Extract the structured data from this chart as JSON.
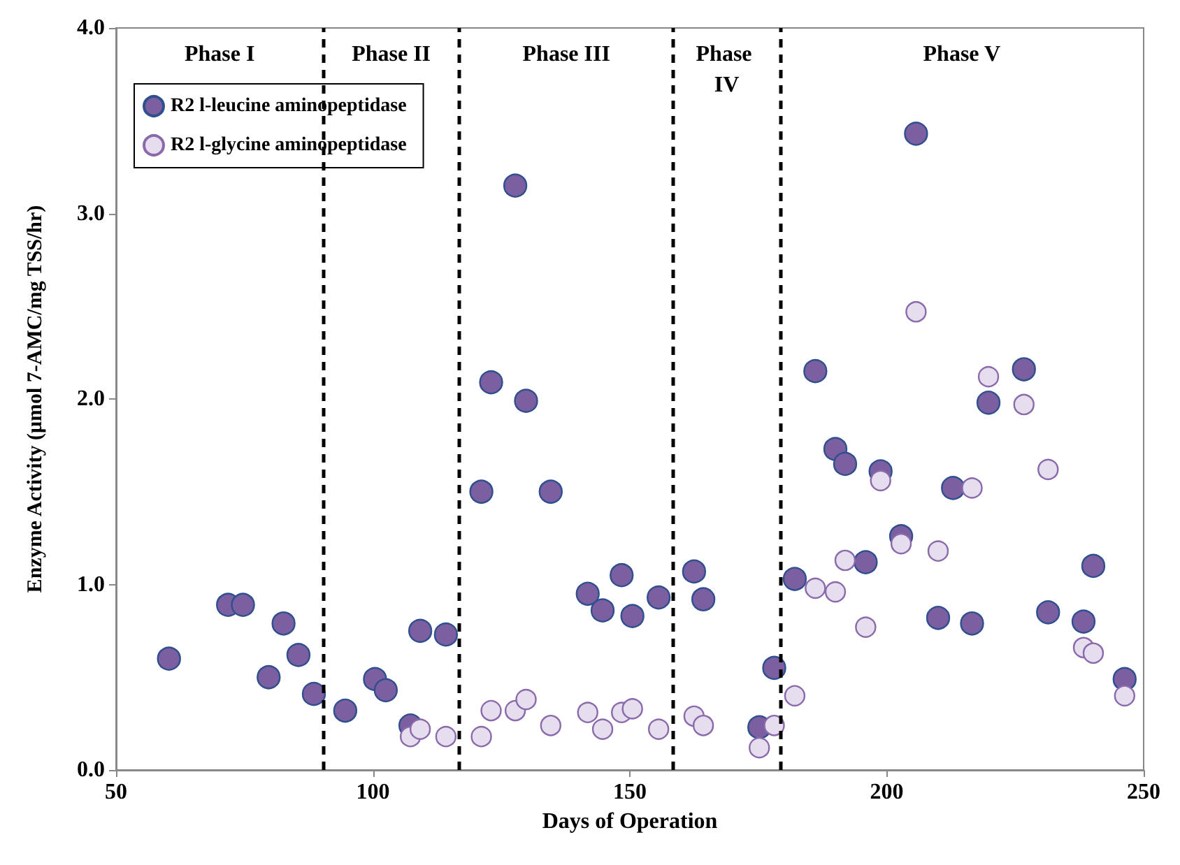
{
  "chart_data": {
    "type": "scatter",
    "xlabel": "Days of Operation",
    "ylabel": "Enzyme Activity (μmol 7-AMC/mg TSS/hr)",
    "xlim": [
      50,
      250
    ],
    "xticks": [
      50,
      100,
      150,
      200,
      250
    ],
    "ylim": [
      0,
      4
    ],
    "yticks": [
      {
        "value": 0,
        "label": "0.0"
      },
      {
        "value": 1,
        "label": "1.0"
      },
      {
        "value": 2,
        "label": "2.0"
      },
      {
        "value": 3,
        "label": "3.0"
      },
      {
        "value": 4,
        "label": "4.0"
      }
    ],
    "grid": false,
    "legend": "top left",
    "marker": "circle",
    "series": [
      {
        "name": "R2 l-leucine aminopeptidase",
        "color": "#7b5fa0",
        "x": [
          60.3,
          71.8,
          74.7,
          79.7,
          82.6,
          85.5,
          88.5,
          94.6,
          100.4,
          102.5,
          107.3,
          109.2,
          114.2,
          121.1,
          123,
          127.7,
          129.8,
          134.6,
          141.8,
          144.7,
          148.4,
          150.5,
          155.6,
          162.5,
          164.3,
          175.2,
          178.1,
          182.1,
          186.1,
          190,
          191.9,
          195.9,
          198.8,
          202.8,
          205.7,
          210,
          212.9,
          216.6,
          219.8,
          226.7,
          231.4,
          238.3,
          240.2,
          246.3
        ],
        "values": [
          0.6,
          0.89,
          0.89,
          0.5,
          0.79,
          0.62,
          0.41,
          0.32,
          0.49,
          0.43,
          0.24,
          0.75,
          0.73,
          1.5,
          2.09,
          3.15,
          1.99,
          1.5,
          0.95,
          0.86,
          1.05,
          0.83,
          0.93,
          1.07,
          0.92,
          0.23,
          0.55,
          1.03,
          2.15,
          1.73,
          1.65,
          1.12,
          1.61,
          1.26,
          3.43,
          0.82,
          1.52,
          0.79,
          1.98,
          2.16,
          0.85,
          0.8,
          1.1,
          0.49
        ]
      },
      {
        "name": "R2 l-glycine aminopeptidase",
        "color": "#e6deee",
        "x": [
          107.3,
          109.2,
          114.2,
          121.1,
          123,
          127.7,
          129.8,
          134.6,
          141.8,
          144.7,
          148.4,
          150.5,
          155.6,
          162.5,
          164.3,
          175.2,
          178.1,
          182.1,
          186.1,
          190,
          191.9,
          195.9,
          198.8,
          202.8,
          205.7,
          210,
          216.6,
          219.8,
          226.7,
          231.4,
          238.3,
          240.2,
          246.3
        ],
        "values": [
          0.18,
          0.22,
          0.18,
          0.18,
          0.32,
          0.32,
          0.38,
          0.24,
          0.31,
          0.22,
          0.31,
          0.33,
          0.22,
          0.29,
          0.24,
          0.12,
          0.24,
          0.4,
          0.98,
          0.96,
          1.13,
          0.77,
          1.56,
          1.22,
          2.47,
          1.18,
          1.52,
          2.12,
          1.97,
          1.62,
          0.66,
          0.63,
          0.4
        ]
      }
    ],
    "ref_lines": [
      {
        "axis": "x",
        "value": 90.3,
        "line_style": "dashed",
        "color": "#000000"
      },
      {
        "axis": "x",
        "value": 116.8,
        "line_style": "dashed",
        "color": "#000000"
      },
      {
        "axis": "x",
        "value": 158.5,
        "line_style": "dashed",
        "color": "#000000"
      },
      {
        "axis": "x",
        "value": 179.2,
        "line_style": "dashed",
        "color": "#000000"
      }
    ],
    "annotations": [
      "Phase I",
      "Phase II",
      "Phase III",
      "Phase IV",
      "Phase V"
    ]
  }
}
